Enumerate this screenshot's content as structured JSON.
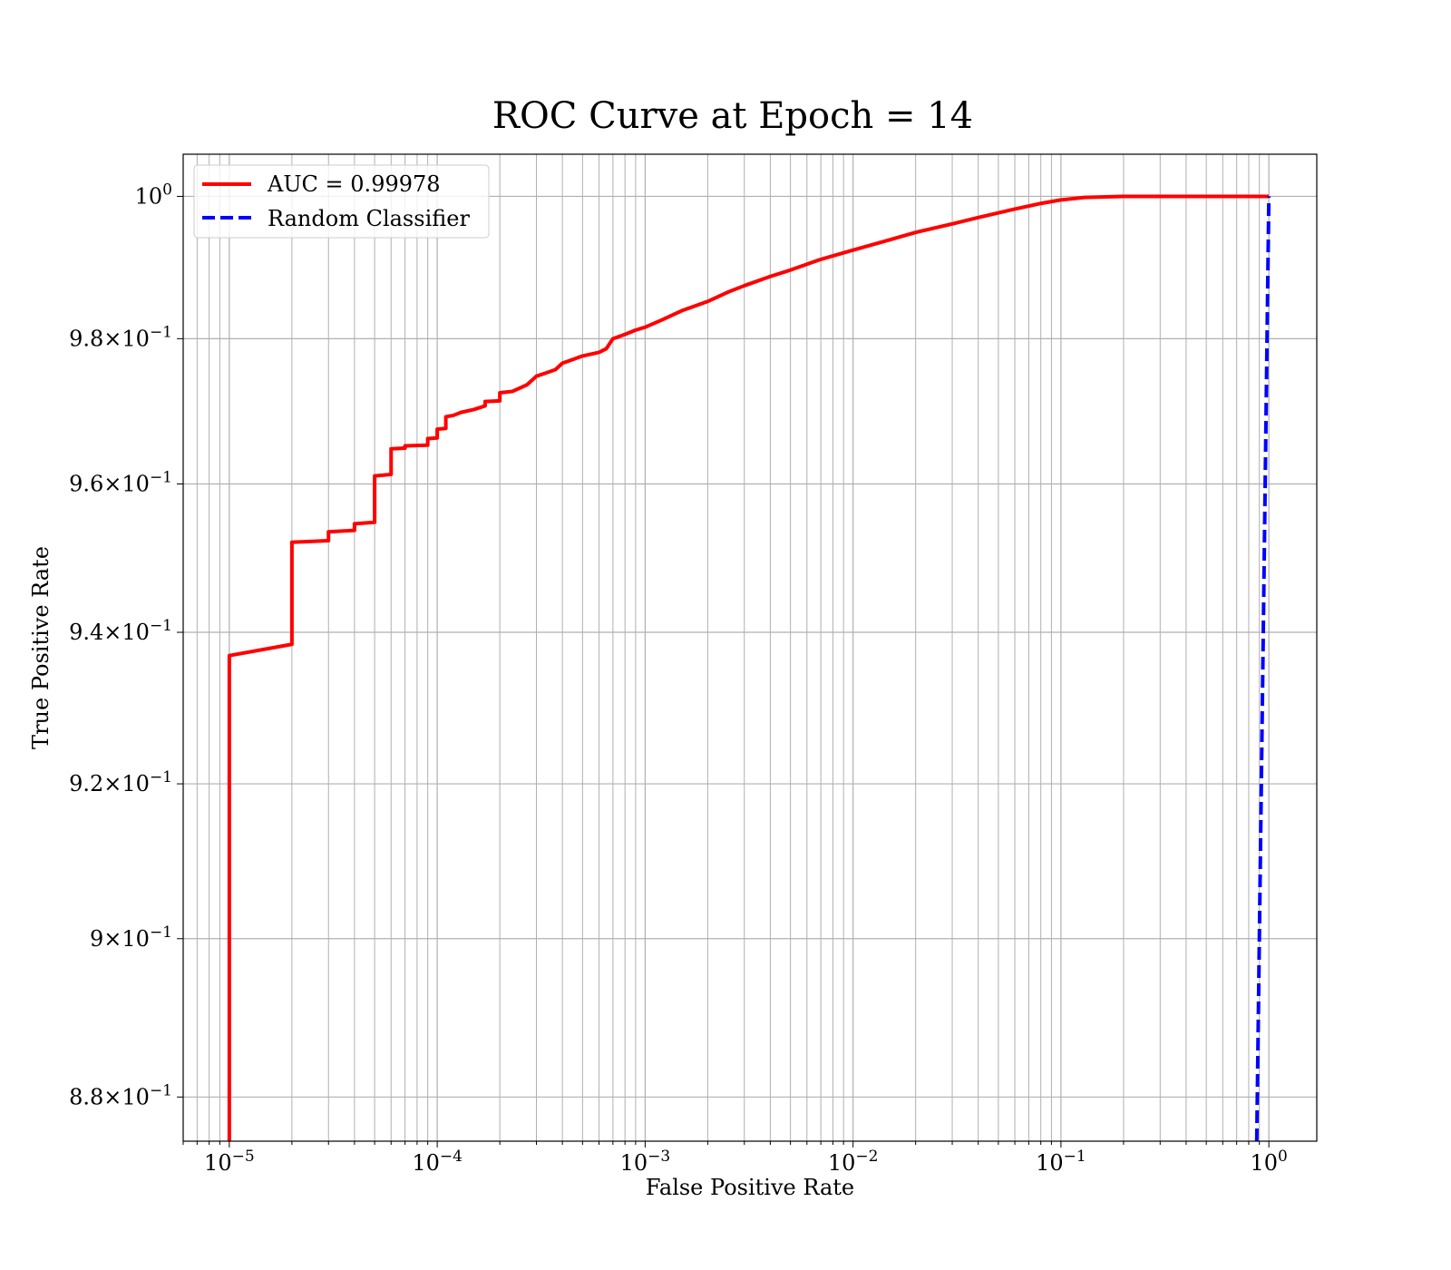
{
  "chart_data": {
    "type": "line",
    "title": "ROC Curve at Epoch = 14",
    "xlabel": "False Positive Rate",
    "ylabel": "True Positive Rate",
    "xscale": "log",
    "yscale": "log",
    "xlim": [
      6e-06,
      1.7
    ],
    "ylim": [
      0.8745,
      1.006
    ],
    "grid": "both-major-and-minor",
    "legend_position": "upper left",
    "x_ticks": [
      {
        "value": 1e-05,
        "base": "10",
        "exp": "−5"
      },
      {
        "value": 0.0001,
        "base": "10",
        "exp": "−4"
      },
      {
        "value": 0.001,
        "base": "10",
        "exp": "−3"
      },
      {
        "value": 0.01,
        "base": "10",
        "exp": "−2"
      },
      {
        "value": 0.1,
        "base": "10",
        "exp": "−1"
      },
      {
        "value": 1,
        "base": "10",
        "exp": "0"
      }
    ],
    "y_ticks": [
      {
        "value": 0.88,
        "mant": "8.8",
        "base": "10",
        "exp": "−1"
      },
      {
        "value": 0.9,
        "mant": "9",
        "base": "10",
        "exp": "−1"
      },
      {
        "value": 0.92,
        "mant": "9.2",
        "base": "10",
        "exp": "−1"
      },
      {
        "value": 0.94,
        "mant": "9.4",
        "base": "10",
        "exp": "−1"
      },
      {
        "value": 0.96,
        "mant": "9.6",
        "base": "10",
        "exp": "−1"
      },
      {
        "value": 0.98,
        "mant": "9.8",
        "base": "10",
        "exp": "−1"
      },
      {
        "value": 1.0,
        "mant": "",
        "base": "10",
        "exp": "0"
      }
    ],
    "series": [
      {
        "name": "AUC = 0.99978",
        "color": "#ff0000",
        "style": "solid",
        "points": [
          [
            1e-05,
            0.8745
          ],
          [
            1e-05,
            0.9369
          ],
          [
            2e-05,
            0.9384
          ],
          [
            2e-05,
            0.9521
          ],
          [
            3e-05,
            0.9523
          ],
          [
            3e-05,
            0.9535
          ],
          [
            4e-05,
            0.9537
          ],
          [
            4e-05,
            0.9546
          ],
          [
            5e-05,
            0.9548
          ],
          [
            5e-05,
            0.9611
          ],
          [
            6e-05,
            0.9613
          ],
          [
            6e-05,
            0.9648
          ],
          [
            7e-05,
            0.9649
          ],
          [
            7e-05,
            0.9652
          ],
          [
            9e-05,
            0.9653
          ],
          [
            9e-05,
            0.9662
          ],
          [
            0.0001,
            0.9663
          ],
          [
            0.0001,
            0.9675
          ],
          [
            0.00011,
            0.9676
          ],
          [
            0.00011,
            0.9692
          ],
          [
            0.00012,
            0.9694
          ],
          [
            0.00013,
            0.9698
          ],
          [
            0.00015,
            0.9702
          ],
          [
            0.00017,
            0.9707
          ],
          [
            0.00017,
            0.9713
          ],
          [
            0.0002,
            0.9714
          ],
          [
            0.0002,
            0.9725
          ],
          [
            0.00023,
            0.9727
          ],
          [
            0.00027,
            0.9736
          ],
          [
            0.0003,
            0.9748
          ],
          [
            0.00033,
            0.9752
          ],
          [
            0.00037,
            0.9757
          ],
          [
            0.0004,
            0.9766
          ],
          [
            0.0005,
            0.9776
          ],
          [
            0.0006,
            0.9781
          ],
          [
            0.00065,
            0.9786
          ],
          [
            0.0007,
            0.98
          ],
          [
            0.0008,
            0.9806
          ],
          [
            0.0009,
            0.9812
          ],
          [
            0.001,
            0.9816
          ],
          [
            0.0012,
            0.9826
          ],
          [
            0.0015,
            0.9839
          ],
          [
            0.002,
            0.9852
          ],
          [
            0.0025,
            0.9865
          ],
          [
            0.003,
            0.9874
          ],
          [
            0.004,
            0.9887
          ],
          [
            0.005,
            0.9896
          ],
          [
            0.007,
            0.9911
          ],
          [
            0.01,
            0.9924
          ],
          [
            0.014,
            0.9936
          ],
          [
            0.02,
            0.9949
          ],
          [
            0.03,
            0.9961
          ],
          [
            0.04,
            0.997
          ],
          [
            0.06,
            0.9982
          ],
          [
            0.08,
            0.999
          ],
          [
            0.1,
            0.9995
          ],
          [
            0.13,
            0.99985
          ],
          [
            0.2,
            1.0
          ],
          [
            1.0,
            1.0
          ]
        ]
      },
      {
        "name": "Random Classifier",
        "color": "#0000ff",
        "style": "dashed",
        "points": [
          [
            0.8745,
            0.8745
          ],
          [
            1.0,
            1.0
          ]
        ]
      }
    ]
  }
}
